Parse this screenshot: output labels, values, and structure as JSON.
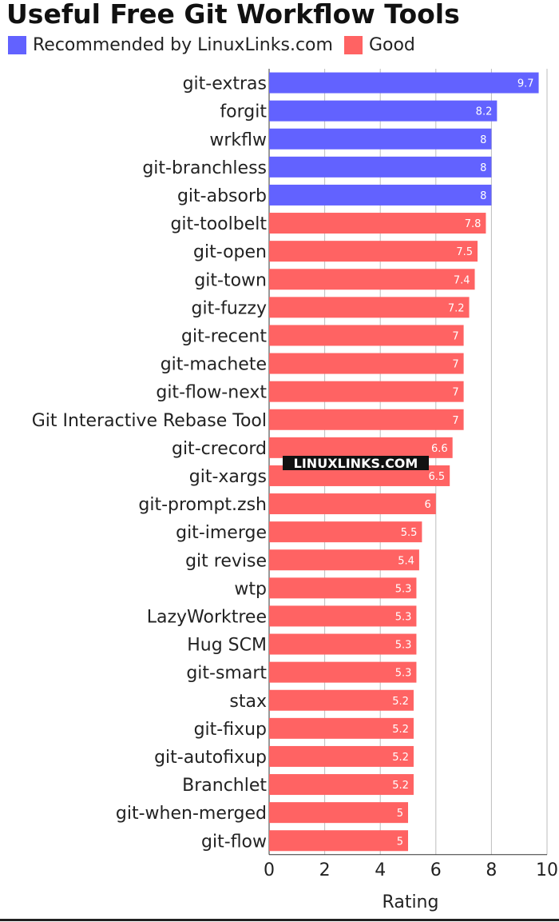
{
  "title": "Useful Free Git Workflow Tools",
  "colors": {
    "recommended": "#6262ff",
    "good": "#ff6363"
  },
  "watermark": "LINUXLINKS.COM",
  "chart_data": {
    "type": "bar",
    "orientation": "horizontal",
    "title": "Useful Free Git Workflow Tools",
    "xlabel": "Rating",
    "xlim": [
      0,
      10
    ],
    "xticks": [
      0,
      2,
      4,
      6,
      8,
      10
    ],
    "grid": true,
    "legend_position": "top-left",
    "legend": [
      {
        "name": "Recommended by LinuxLinks.com",
        "color": "#6262ff"
      },
      {
        "name": "Good",
        "color": "#ff6363"
      }
    ],
    "categories": [
      "git-extras",
      "forgit",
      "wrkflw",
      "git-branchless",
      "git-absorb",
      "git-toolbelt",
      "git-open",
      "git-town",
      "git-fuzzy",
      "git-recent",
      "git-machete",
      "git-flow-next",
      "Git Interactive Rebase Tool",
      "git-crecord",
      "git-xargs",
      "git-prompt.zsh",
      "git-imerge",
      "git revise",
      "wtp",
      "LazyWorktree",
      "Hug SCM",
      "git-smart",
      "stax",
      "git-fixup",
      "git-autofixup",
      "Branchlet",
      "git-when-merged",
      "git-flow"
    ],
    "values": [
      9.7,
      8.2,
      8,
      8,
      8,
      7.8,
      7.5,
      7.4,
      7.2,
      7,
      7,
      7,
      7,
      6.6,
      6.5,
      6,
      5.5,
      5.4,
      5.3,
      5.3,
      5.3,
      5.3,
      5.2,
      5.2,
      5.2,
      5.2,
      5,
      5
    ],
    "groups": [
      "Recommended by LinuxLinks.com",
      "Recommended by LinuxLinks.com",
      "Recommended by LinuxLinks.com",
      "Recommended by LinuxLinks.com",
      "Recommended by LinuxLinks.com",
      "Good",
      "Good",
      "Good",
      "Good",
      "Good",
      "Good",
      "Good",
      "Good",
      "Good",
      "Good",
      "Good",
      "Good",
      "Good",
      "Good",
      "Good",
      "Good",
      "Good",
      "Good",
      "Good",
      "Good",
      "Good",
      "Good",
      "Good"
    ]
  }
}
